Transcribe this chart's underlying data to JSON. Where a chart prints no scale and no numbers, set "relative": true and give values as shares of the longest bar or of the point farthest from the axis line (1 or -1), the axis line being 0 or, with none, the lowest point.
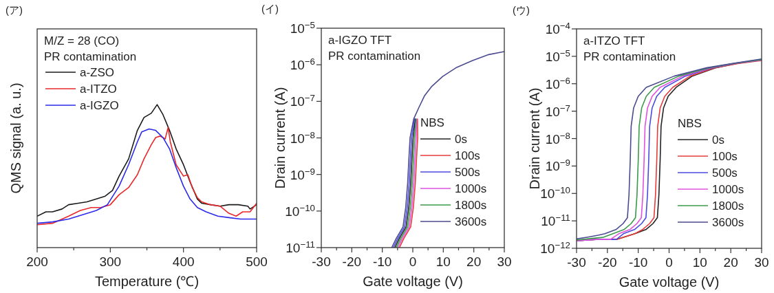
{
  "chart_data": [
    {
      "type": "line",
      "title": "(ア)",
      "xlabel": "Temperature (℃)",
      "ylabel": "QMS signal (a. u.)",
      "relative": true,
      "xlim": [
        200,
        500
      ],
      "xticks": [
        200,
        {
          "value": 250,
          "label": null
        },
        300,
        {
          "value": 350,
          "label": null
        },
        400,
        {
          "value": 450,
          "label": null
        },
        500
      ],
      "legend": "top left",
      "annotations": [
        "M/Z = 28 (CO)",
        "PR contamination"
      ],
      "series": [
        {
          "name": "a-ZSO",
          "color": "#1a1a1a",
          "x": [
            200,
            212,
            221,
            234,
            243,
            256,
            268,
            281,
            293,
            303,
            312,
            325,
            337,
            346,
            356,
            364,
            372,
            381,
            390,
            400,
            409,
            419,
            425,
            437,
            450,
            462,
            475,
            488,
            491,
            500
          ],
          "values": [
            0.22,
            0.25,
            0.25,
            0.27,
            0.3,
            0.31,
            0.32,
            0.34,
            0.36,
            0.4,
            0.5,
            0.62,
            0.82,
            0.91,
            0.94,
            1.0,
            0.93,
            0.82,
            0.69,
            0.58,
            0.46,
            0.34,
            0.31,
            0.3,
            0.29,
            0.3,
            0.3,
            0.29,
            0.27,
            0.3
          ]
        },
        {
          "name": "a-ITZO",
          "color": "#e8282a",
          "x": [
            200,
            221,
            243,
            259,
            274,
            287,
            300,
            312,
            325,
            337,
            346,
            356,
            362,
            368,
            375,
            379,
            382,
            390,
            400,
            406,
            412,
            419,
            425,
            437,
            450,
            462,
            472,
            481,
            491,
            500
          ],
          "values": [
            0.16,
            0.17,
            0.22,
            0.26,
            0.28,
            0.28,
            0.3,
            0.37,
            0.42,
            0.51,
            0.62,
            0.72,
            0.77,
            0.78,
            0.76,
            0.84,
            0.74,
            0.58,
            0.5,
            0.51,
            0.42,
            0.35,
            0.32,
            0.3,
            0.29,
            0.24,
            0.22,
            0.25,
            0.25,
            0.31
          ]
        },
        {
          "name": "a-IGZO",
          "color": "#2a2ae8",
          "x": [
            200,
            221,
            243,
            262,
            281,
            296,
            312,
            325,
            337,
            343,
            353,
            362,
            372,
            381,
            390,
            400,
            409,
            419,
            431,
            447,
            462,
            478,
            500
          ],
          "values": [
            0.17,
            0.18,
            0.2,
            0.23,
            0.26,
            0.3,
            0.43,
            0.58,
            0.74,
            0.81,
            0.83,
            0.82,
            0.77,
            0.69,
            0.56,
            0.43,
            0.34,
            0.28,
            0.25,
            0.22,
            0.21,
            0.2,
            0.2
          ]
        }
      ]
    },
    {
      "type": "line",
      "title": "(イ)",
      "xlabel": "Gate voltage (V)",
      "ylabel": "Drain current (A)",
      "log": true,
      "xlim": [
        -30,
        30
      ],
      "xticks": [
        -30,
        {
          "value": -25,
          "label": null
        },
        -20,
        {
          "value": -15,
          "label": null
        },
        -10,
        {
          "value": -5,
          "label": null
        },
        0,
        {
          "value": 5,
          "label": null
        },
        10,
        {
          "value": 15,
          "label": null
        },
        20,
        {
          "value": 25,
          "label": null
        },
        30
      ],
      "ylim": [
        1e-11,
        1e-05
      ],
      "yticks": [
        {
          "value": 1e-11,
          "label": "10$^{−11}$"
        },
        {
          "value": 1e-10,
          "label": "10$^{−10}$"
        },
        {
          "value": 1e-09,
          "label": "10$^{−9}$"
        },
        {
          "value": 1e-08,
          "label": "10$^{−8}$"
        },
        {
          "value": 1e-07,
          "label": "10$^{−7}$"
        },
        {
          "value": 1e-06,
          "label": "10$^{−6}$"
        },
        {
          "value": 1e-05,
          "label": "10$^{−5}$"
        }
      ],
      "legend": "bottom right",
      "legend_title": "NBS",
      "annotations": [
        "a-IGZO TFT",
        "PR contamination"
      ],
      "series": [
        {
          "name": "0s",
          "color": "#222222",
          "x": [
            -5.9,
            -4.4,
            -2.2,
            -1.3,
            -0.7,
            -0.3,
            0.1,
            0.8
          ],
          "values": [
            1e-11,
            1.8e-11,
            3.7e-11,
            1.3e-10,
            5.6e-10,
            2.5e-09,
            1e-08,
            3.3e-08
          ]
        },
        {
          "name": "100s",
          "color": "#e83a3a",
          "x": [
            -4.4,
            -2.9,
            -0.7,
            0.2,
            0.8,
            1.2,
            1.6,
            1.55
          ],
          "values": [
            1e-11,
            1.8e-11,
            3.7e-11,
            1.3e-10,
            5.6e-10,
            2.5e-09,
            1e-08,
            3.3e-08
          ]
        },
        {
          "name": "500s",
          "color": "#4a4ae0",
          "x": [
            -6.4,
            -4.9,
            -2.7,
            -1.8,
            -1.2,
            -0.8,
            -0.4,
            0.55
          ],
          "values": [
            1e-11,
            1.8e-11,
            3.7e-11,
            1.3e-10,
            5.6e-10,
            2.5e-09,
            1e-08,
            3.3e-08
          ]
        },
        {
          "name": "1000s",
          "color": "#e050e0",
          "x": [
            -4.9,
            -3.4,
            -1.2,
            -0.3,
            0.3,
            0.7,
            1.1,
            1.3
          ],
          "values": [
            1e-11,
            1.8e-11,
            3.7e-11,
            1.3e-10,
            5.6e-10,
            2.5e-09,
            1e-08,
            3.3e-08
          ]
        },
        {
          "name": "1800s",
          "color": "#3a9a4a",
          "x": [
            -5.4,
            -3.9,
            -1.7,
            -0.8,
            -0.2,
            0.2,
            0.6,
            1.05
          ],
          "values": [
            1e-11,
            1.8e-11,
            3.7e-11,
            1.3e-10,
            5.6e-10,
            2.5e-09,
            1e-08,
            3.3e-08
          ]
        },
        {
          "name": "3600s",
          "color": "#4a4a90",
          "x": [
            -6.9,
            -5.4,
            -3.2,
            -2.3,
            -1.7,
            -1.3,
            -0.9,
            0.3,
            2,
            3.8,
            6.1,
            9.8,
            14.4,
            19.6,
            24.9,
            30
          ],
          "values": [
            1e-11,
            1.8e-11,
            3.7e-11,
            1.3e-10,
            5.6e-10,
            2.5e-09,
            1e-08,
            3.3e-08,
            6.8e-08,
            1.4e-07,
            2.5e-07,
            4.8e-07,
            8.5e-07,
            1.3e-06,
            1.9e-06,
            2.3e-06
          ]
        }
      ]
    },
    {
      "type": "line",
      "title": "(ウ)",
      "xlabel": "Gate voltage (V)",
      "ylabel": "Drain current (A)",
      "log": true,
      "xlim": [
        -30,
        30
      ],
      "xticks": [
        -30,
        {
          "value": -25,
          "label": null
        },
        -20,
        {
          "value": -15,
          "label": null
        },
        -10,
        {
          "value": -5,
          "label": null
        },
        0,
        {
          "value": 5,
          "label": null
        },
        10,
        {
          "value": 15,
          "label": null
        },
        20,
        {
          "value": 25,
          "label": null
        },
        30
      ],
      "ylim": [
        1e-12,
        0.0001
      ],
      "yticks": [
        {
          "value": 1e-12,
          "label": "10$^{−12}$"
        },
        {
          "value": 1e-11,
          "label": "10$^{−11}$"
        },
        {
          "value": 1e-10,
          "label": "10$^{−10}$"
        },
        {
          "value": 1e-09,
          "label": "10$^{−9}$"
        },
        {
          "value": 1e-08,
          "label": "10$^{−8}$"
        },
        {
          "value": 1e-07,
          "label": "10$^{−7}$"
        },
        {
          "value": 1e-06,
          "label": "10$^{−6}$"
        },
        {
          "value": 1e-05,
          "label": "10$^{−5}$"
        },
        {
          "value": 0.0001,
          "label": "10$^{−4}$"
        }
      ],
      "legend": "bottom right",
      "legend_title": "NBS",
      "annotations": [
        "a-ITZO TFT",
        "PR contamination"
      ],
      "series": [
        {
          "name": "0s",
          "color": "#222222",
          "x": [
            -30,
            -23.8,
            -17.1,
            -11.1,
            -7.4,
            -5.2,
            -3.8,
            -3.3,
            -2.9,
            -2.6,
            -1.8,
            -0.3,
            2.3,
            7.5,
            15,
            22.4,
            30
          ],
          "values": [
            1.9e-12,
            2.1e-12,
            2.1e-12,
            3.4e-12,
            4.9e-12,
            8e-12,
            1.3e-11,
            8.9e-11,
            1.6e-09,
            2.8e-08,
            1.3e-07,
            3.5e-07,
            7.4e-07,
            1.9e-06,
            3.8e-06,
            5.6e-06,
            7.4e-06
          ]
        },
        {
          "name": "100s",
          "color": "#e83a3a",
          "x": [
            -30,
            -23.8,
            -17.1,
            -11.1,
            -8.5,
            -6.3,
            -4.9,
            -4.4,
            -4,
            -3.7,
            -2.9,
            -1.4,
            1.2,
            6.8,
            14.7,
            22.2,
            30
          ],
          "values": [
            1.9e-12,
            2.1e-12,
            2.1e-12,
            3.4e-12,
            4.9e-12,
            8e-12,
            1.3e-11,
            8.9e-11,
            1.6e-09,
            2.8e-08,
            1.3e-07,
            3.5e-07,
            7.4e-07,
            1.9e-06,
            3.8e-06,
            5.4e-06,
            7e-06
          ]
        },
        {
          "name": "500s",
          "color": "#4a4ae0",
          "x": [
            -30,
            -23.8,
            -17.1,
            -14.8,
            -11.1,
            -8.9,
            -7.5,
            -7,
            -6.6,
            -6.3,
            -5.5,
            -4,
            -1.4,
            5.3,
            13.9,
            21.8,
            30
          ],
          "values": [
            1.9e-12,
            2.1e-12,
            2.1e-12,
            3.4e-12,
            4.9e-12,
            8e-12,
            1.3e-11,
            8.9e-11,
            1.6e-09,
            2.8e-08,
            1.3e-07,
            3.5e-07,
            7.4e-07,
            1.9e-06,
            3.8e-06,
            5.6e-06,
            7.4e-06
          ]
        },
        {
          "name": "1000s",
          "color": "#e050e0",
          "x": [
            -30,
            -23.8,
            -19,
            -16.3,
            -12.6,
            -10.4,
            -9,
            -8.5,
            -8.1,
            -7.8,
            -7,
            -5.5,
            -2.9,
            4.4,
            13.4,
            21.6,
            30
          ],
          "values": [
            1.9e-12,
            2.1e-12,
            2.1e-12,
            3.4e-12,
            4.9e-12,
            8e-12,
            1.3e-11,
            8.9e-11,
            1.6e-09,
            2.8e-08,
            1.3e-07,
            3.5e-07,
            7.4e-07,
            1.9e-06,
            3.8e-06,
            5.6e-06,
            7.4e-06
          ]
        },
        {
          "name": "1800s",
          "color": "#3a9a4a",
          "x": [
            -30,
            -25,
            -21.5,
            -18.2,
            -14.5,
            -12.3,
            -10.9,
            -10.4,
            -10,
            -9.7,
            -8.9,
            -7.4,
            -4.8,
            3.2,
            12.9,
            21.3,
            30
          ],
          "values": [
            2e-12,
            2.3e-12,
            2.5e-12,
            3.4e-12,
            4.9e-12,
            8e-12,
            1.3e-11,
            8.9e-11,
            1.6e-09,
            2.8e-08,
            1.3e-07,
            3.5e-07,
            7.4e-07,
            1.9e-06,
            3.8e-06,
            5.6e-06,
            7.6e-06
          ]
        },
        {
          "name": "3600s",
          "color": "#4a4a90",
          "x": [
            -30,
            -26,
            -23,
            -20.8,
            -17.1,
            -14.9,
            -13.5,
            -13,
            -12.6,
            -12.3,
            -11.5,
            -10,
            -7.4,
            1.7,
            12.1,
            20.9,
            30
          ],
          "values": [
            2.2e-12,
            2.6e-12,
            3e-12,
            3.4e-12,
            4.9e-12,
            8e-12,
            1.3e-11,
            8.9e-11,
            1.6e-09,
            2.8e-08,
            1.3e-07,
            3.5e-07,
            7.4e-07,
            1.9e-06,
            3.8e-06,
            5.6e-06,
            8e-06
          ]
        }
      ]
    }
  ]
}
